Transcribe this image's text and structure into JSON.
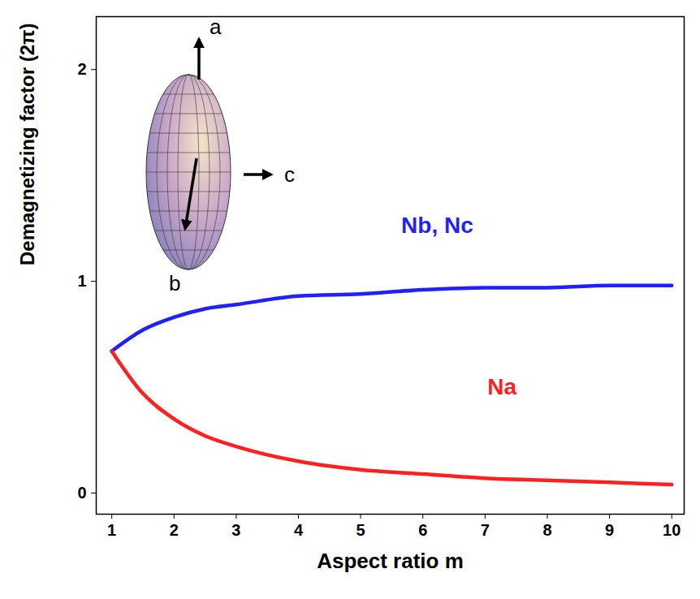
{
  "chart_data": {
    "type": "line",
    "x_label": "Aspect ratio m",
    "y_label": "Demagnetizing factor (2π)",
    "x": [
      1,
      1.5,
      2,
      2.5,
      3,
      4,
      5,
      6,
      7,
      8,
      9,
      10
    ],
    "series": [
      {
        "name": "Nb, Nc",
        "color": "#1f1fff",
        "values": [
          0.67,
          0.77,
          0.83,
          0.87,
          0.89,
          0.93,
          0.94,
          0.96,
          0.97,
          0.97,
          0.98,
          0.98
        ]
      },
      {
        "name": "Na",
        "color": "#ff1f1f",
        "values": [
          0.67,
          0.47,
          0.35,
          0.27,
          0.22,
          0.15,
          0.11,
          0.09,
          0.07,
          0.06,
          0.05,
          0.04
        ]
      }
    ],
    "xlim": [
      0.75,
      10.2
    ],
    "xticks": [
      1,
      2,
      3,
      4,
      5,
      6,
      7,
      8,
      9,
      10
    ],
    "ylim": [
      -0.1,
      2.25
    ],
    "yticks": [
      0,
      1,
      2
    ],
    "grid": false,
    "annotations": [
      "a",
      "b",
      "c"
    ]
  }
}
